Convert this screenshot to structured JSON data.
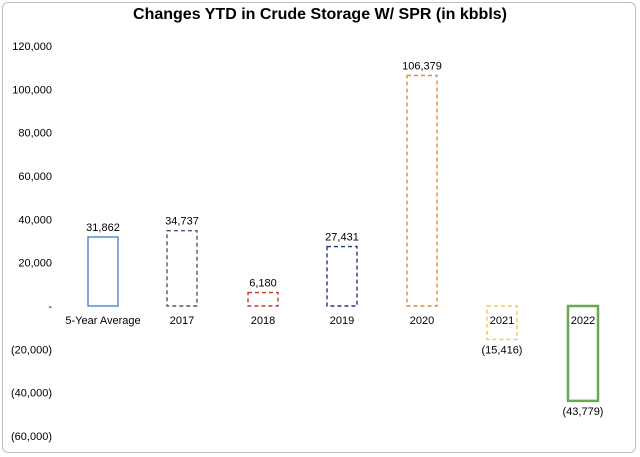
{
  "chart_data": {
    "type": "bar",
    "title": "Changes YTD in Crude Storage W/ SPR (in kbbls)",
    "xlabel": "",
    "ylabel": "",
    "ylim": [
      -60000,
      120000
    ],
    "yticks": [
      120000,
      100000,
      80000,
      60000,
      40000,
      20000,
      0,
      -20000,
      -40000,
      -60000
    ],
    "ytick_labels": [
      "120,000",
      "100,000",
      "80,000",
      "60,000",
      "40,000",
      "20,000",
      "-",
      "(20,000)",
      "(40,000)",
      "(60,000)"
    ],
    "grid": false,
    "legend": "none",
    "categories": [
      "5-Year Average",
      "2017",
      "2018",
      "2019",
      "2020",
      "2021",
      "2022"
    ],
    "values": [
      31862,
      34737,
      6180,
      27431,
      106379,
      -15416,
      -43779
    ],
    "value_labels": [
      "31,862",
      "34,737",
      "6,180",
      "27,431",
      "106,379",
      "(15,416)",
      "(43,779)"
    ],
    "bar_colors": [
      "#4a86c8",
      "#4a5a78",
      "#c0392b",
      "#1f3a7a",
      "#e08a3c",
      "#f2c94c",
      "#6aa84f"
    ],
    "bar_styles": [
      "solid",
      "dashed",
      "dashed",
      "dashed",
      "dashed",
      "dashed",
      "solid"
    ]
  }
}
